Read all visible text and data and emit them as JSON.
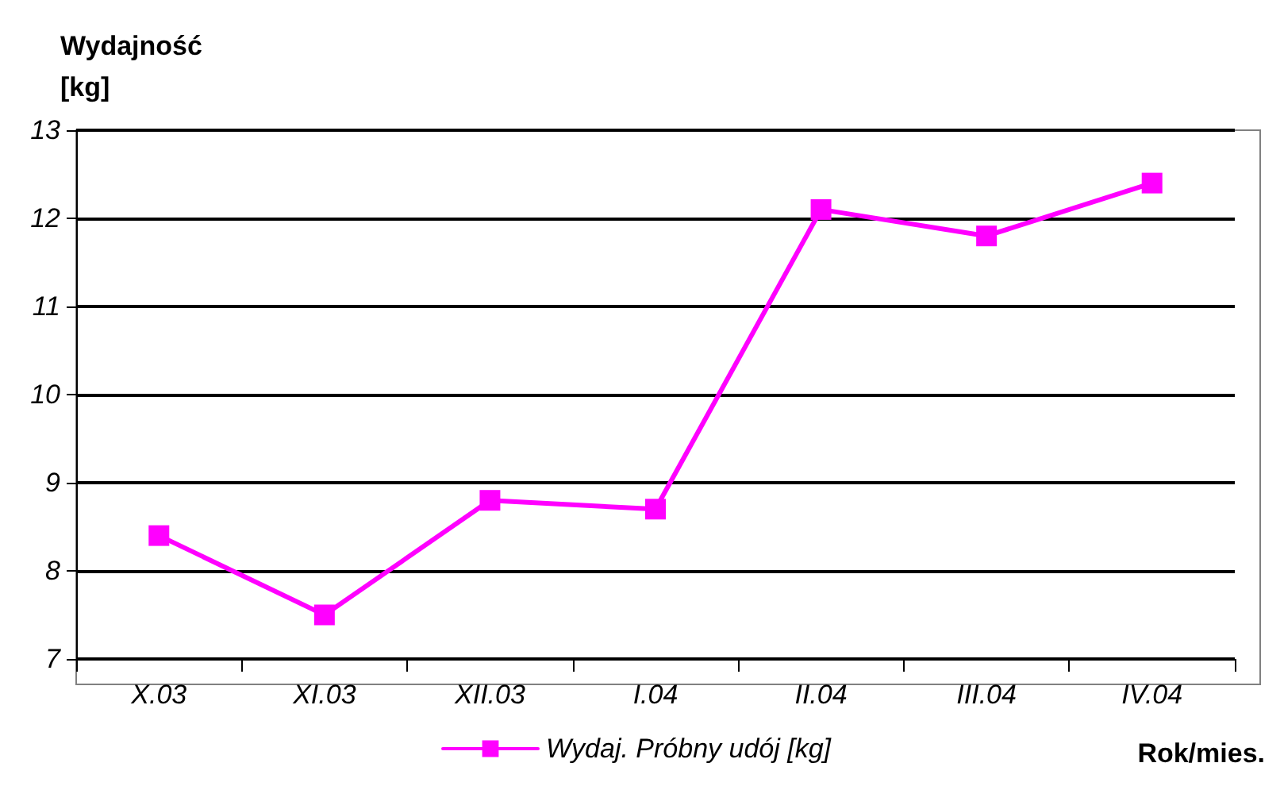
{
  "chart_data": {
    "type": "line",
    "ylabel": "Wydajność\n[kg]",
    "xlabel": "Rok/mies.",
    "categories": [
      "X.03",
      "XI.03",
      "XII.03",
      "I.04",
      "II.04",
      "III.04",
      "IV.04"
    ],
    "series": [
      {
        "name": "Wydaj. Próbny udój [kg]",
        "color": "#ff00ff",
        "values": [
          8.4,
          7.5,
          8.8,
          8.7,
          12.1,
          11.8,
          12.4
        ]
      }
    ],
    "ylim": [
      7,
      13
    ],
    "yticks": [
      7,
      8,
      9,
      10,
      11,
      12,
      13
    ],
    "grid": "y",
    "legend": "bottom",
    "marker": "square",
    "line_style": "solid"
  }
}
